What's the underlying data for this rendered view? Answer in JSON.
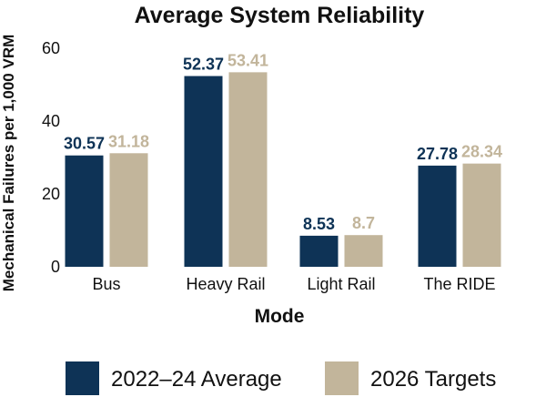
{
  "chart_data": {
    "type": "bar",
    "title": "Average System Reliability",
    "xlabel": "Mode",
    "ylabel": "Mechanical Failures per 1,000 VRM",
    "categories": [
      "Bus",
      "Heavy Rail",
      "Light Rail",
      "The RIDE"
    ],
    "series": [
      {
        "name": "2022–24 Average",
        "values": [
          30.57,
          52.37,
          8.53,
          27.78
        ],
        "labels": [
          "30.57",
          "52.37",
          "8.53",
          "27.78"
        ],
        "color": "#0e3356"
      },
      {
        "name": "2026 Targets",
        "values": [
          31.18,
          53.41,
          8.7,
          28.34
        ],
        "labels": [
          "31.18",
          "53.41",
          "8.7",
          "28.34"
        ],
        "color": "#c2b59b"
      }
    ],
    "ylim": [
      0,
      60
    ],
    "yticks": [
      "0",
      "20",
      "40",
      "60"
    ],
    "grid": false,
    "legend_position": "bottom"
  }
}
